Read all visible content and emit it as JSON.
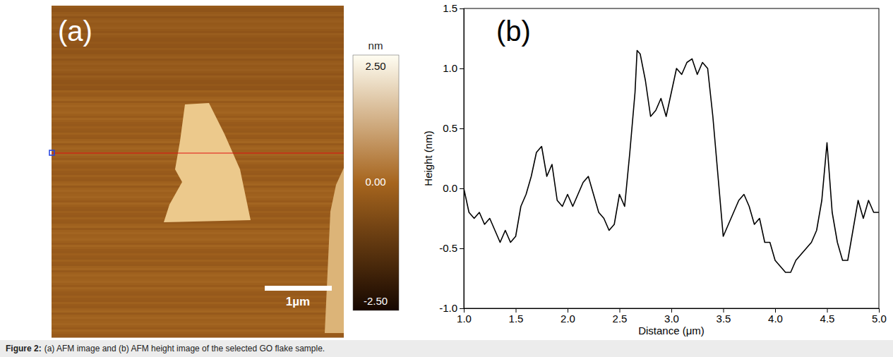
{
  "chart_data": [
    {
      "type": "heatmap",
      "title": "(a)",
      "scale_bar": "1µm",
      "colorbar": {
        "label": "nm",
        "range": [
          -2.5,
          2.5
        ],
        "ticks": [
          {
            "value": 2.5,
            "label": "2.50"
          },
          {
            "value": 0,
            "label": "0.00"
          },
          {
            "value": -2.5,
            "label": "-2.50"
          }
        ]
      }
    },
    {
      "type": "line",
      "title": "(b)",
      "x_label": "Distance (μm)",
      "y_label": "Height (nm)",
      "x": [
        1.0,
        1.05,
        1.1,
        1.15,
        1.2,
        1.25,
        1.3,
        1.35,
        1.4,
        1.45,
        1.5,
        1.55,
        1.6,
        1.65,
        1.7,
        1.75,
        1.8,
        1.85,
        1.9,
        1.95,
        2.0,
        2.05,
        2.1,
        2.15,
        2.2,
        2.25,
        2.3,
        2.35,
        2.4,
        2.45,
        2.5,
        2.55,
        2.6,
        2.65,
        2.67,
        2.7,
        2.75,
        2.8,
        2.85,
        2.9,
        2.95,
        3.0,
        3.05,
        3.1,
        3.15,
        3.2,
        3.25,
        3.3,
        3.35,
        3.4,
        3.45,
        3.5,
        3.55,
        3.6,
        3.65,
        3.7,
        3.75,
        3.8,
        3.85,
        3.9,
        3.95,
        4.0,
        4.05,
        4.1,
        4.15,
        4.2,
        4.25,
        4.3,
        4.35,
        4.4,
        4.45,
        4.5,
        4.55,
        4.6,
        4.65,
        4.7,
        4.75,
        4.8,
        4.85,
        4.9,
        4.95,
        5.0
      ],
      "values": [
        0.0,
        -0.2,
        -0.25,
        -0.2,
        -0.3,
        -0.25,
        -0.35,
        -0.45,
        -0.35,
        -0.45,
        -0.4,
        -0.15,
        -0.05,
        0.1,
        0.3,
        0.35,
        0.1,
        0.2,
        -0.1,
        -0.15,
        -0.05,
        -0.15,
        -0.05,
        0.05,
        0.1,
        -0.05,
        -0.2,
        -0.25,
        -0.35,
        -0.3,
        -0.05,
        -0.15,
        0.3,
        0.8,
        1.15,
        1.12,
        0.9,
        0.6,
        0.65,
        0.75,
        0.6,
        0.8,
        1.0,
        0.95,
        1.05,
        1.08,
        0.95,
        1.05,
        1.0,
        0.6,
        0.1,
        -0.4,
        -0.3,
        -0.2,
        -0.1,
        -0.05,
        -0.15,
        -0.3,
        -0.25,
        -0.45,
        -0.45,
        -0.6,
        -0.65,
        -0.7,
        -0.7,
        -0.6,
        -0.55,
        -0.5,
        -0.45,
        -0.35,
        -0.1,
        0.38,
        -0.2,
        -0.45,
        -0.6,
        -0.6,
        -0.35,
        -0.1,
        -0.25,
        -0.1,
        -0.2,
        -0.2
      ],
      "color": "#000000",
      "xlim": [
        1.0,
        5.0
      ],
      "xticks": [
        {
          "value": 1.0,
          "label": "1.0"
        },
        {
          "value": 1.5,
          "label": "1.5"
        },
        {
          "value": 2.0,
          "label": "2.0"
        },
        {
          "value": 2.5,
          "label": "2.5"
        },
        {
          "value": 3.0,
          "label": "3.0"
        },
        {
          "value": 3.5,
          "label": "3.5"
        },
        {
          "value": 4.0,
          "label": "4.0"
        },
        {
          "value": 4.5,
          "label": "4.5"
        },
        {
          "value": 5.0,
          "label": "5.0"
        }
      ],
      "ylim": [
        -1.0,
        1.5
      ],
      "yticks": [
        {
          "value": -1.0,
          "label": "-1.0"
        },
        {
          "value": -0.5,
          "label": "-0.5"
        },
        {
          "value": 0.0,
          "label": "0.0"
        },
        {
          "value": 0.5,
          "label": "0.5"
        },
        {
          "value": 1.0,
          "label": "1.0"
        },
        {
          "value": 1.5,
          "label": "1.5"
        }
      ],
      "grid": false
    }
  ],
  "caption": {
    "label": "Figure 2:",
    "text": "(a) AFM image and (b) AFM height image of the selected GO flake sample."
  }
}
